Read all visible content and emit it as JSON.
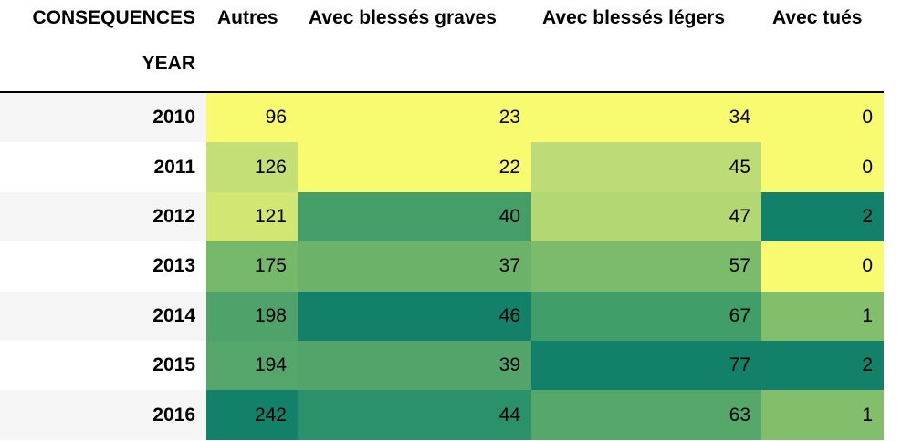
{
  "chart_data": {
    "type": "table",
    "column_header_label": "CONSEQUENCES",
    "index_label": "YEAR",
    "columns": [
      "Autres",
      "Avec blessés graves",
      "Avec blessés légers",
      "Avec tués"
    ],
    "rows": [
      {
        "year": "2010",
        "values": [
          "96",
          "23",
          "34",
          "0"
        ],
        "colors": [
          "#f8fa70",
          "#f8fa70",
          "#f8fa70",
          "#f8fa70"
        ]
      },
      {
        "year": "2011",
        "values": [
          "126",
          "22",
          "45",
          "0"
        ],
        "colors": [
          "#c4df76",
          "#f8fa70",
          "#bddc77",
          "#f8fa70"
        ]
      },
      {
        "year": "2012",
        "values": [
          "121",
          "40",
          "47",
          "2"
        ],
        "colors": [
          "#d1e673",
          "#459e68",
          "#b3d773",
          "#13806a"
        ]
      },
      {
        "year": "2013",
        "values": [
          "175",
          "37",
          "57",
          "0"
        ],
        "colors": [
          "#75b86a",
          "#6cb369",
          "#7bbb6b",
          "#f8fa70"
        ]
      },
      {
        "year": "2014",
        "values": [
          "198",
          "46",
          "67",
          "1"
        ],
        "colors": [
          "#4fa36a",
          "#13806a",
          "#429e68",
          "#82be6c"
        ]
      },
      {
        "year": "2015",
        "values": [
          "194",
          "39",
          "77",
          "2"
        ],
        "colors": [
          "#55a66a",
          "#52a46a",
          "#13806a",
          "#13806a"
        ]
      },
      {
        "year": "2016",
        "values": [
          "242",
          "44",
          "63",
          "1"
        ],
        "colors": [
          "#13806a",
          "#2a916a",
          "#56a76a",
          "#82be6c"
        ]
      }
    ]
  }
}
